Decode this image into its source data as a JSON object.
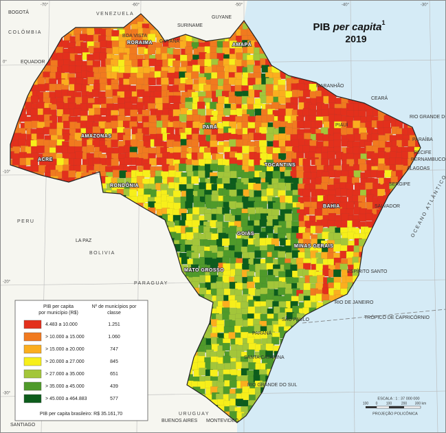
{
  "title": {
    "main": "PIB",
    "italic": "per capita",
    "sup": "1"
  },
  "year": "2019",
  "legend": {
    "header": [
      [
        "PIB per capita",
        "por município (R$)"
      ],
      [
        "Nº de municípios por",
        "classe"
      ]
    ],
    "classes": [
      {
        "range": "4.483 a 10.000",
        "count": "1.251",
        "color": "#e3301c"
      },
      {
        "range": "> 10.000 a 15.000",
        "count": "1.060",
        "color": "#f17a1f"
      },
      {
        "range": "> 15.000 a 20.000",
        "count": "747",
        "color": "#fbae1f"
      },
      {
        "range": "> 20.000 a 27.000",
        "count": "845",
        "color": "#f7ef1a"
      },
      {
        "range": "> 27.000 a 35.000",
        "count": "651",
        "color": "#a3c63a"
      },
      {
        "range": "> 35.000 a 45.000",
        "count": "439",
        "color": "#4f9a2a"
      },
      {
        "range": "> 45.000 a 464.883",
        "count": "577",
        "color": "#0d5d1c"
      }
    ],
    "footer": "PIB per capita brasileiro: R$ 35.161,70"
  },
  "scale": {
    "title": "ESCALA : 1 : 37 000 000",
    "ticks": [
      "100",
      "0",
      "100",
      "200",
      "300 km"
    ],
    "projection": "PROJEÇÃO POLICÔNICA"
  },
  "graticule": {
    "top": [
      "-70°",
      "-60°",
      "-50°",
      "-40°",
      "-30°"
    ],
    "left": [
      "0°",
      "-10°",
      "-20°",
      "-30°"
    ]
  },
  "labels": [
    "BOGOTÁ",
    "VENEZUELA",
    "COLÔMBIA",
    "SURINAME",
    "GUYANE",
    "GUYANA",
    "EQUADOR",
    "RORAIMA",
    "AMAPÁ",
    "AMAZONAS",
    "PARÁ",
    "MARANHÃO",
    "CEARÁ",
    "RIO GRANDE DO NORTE",
    "PARAÍBA",
    "PERNAMBUCO",
    "ALAGOAS",
    "SERGIPE",
    "BAHIA",
    "PIAUÍ",
    "TOCANTINS",
    "ACRE",
    "RONDÔNIA",
    "MATO GROSSO",
    "GOIÁS",
    "MINAS GERAIS",
    "ESPÍRITO SANTO",
    "RIO DE JANEIRO",
    "SÃO PAULO",
    "PARANÁ",
    "SANTA CATARINA",
    "RIO GRANDE DO SUL",
    "PERU",
    "BOLIVIA",
    "PARAGUAY",
    "URUGUAY",
    "OCEANO ATLÂNTICO",
    "TRÓPICO DE CAPRICÓRNIO",
    "BOA VISTA",
    "LA PAZ",
    "SALVADOR",
    "RECIFE",
    "BUENOS AIRES",
    "MONTEVIDEO",
    "SANTIAGO"
  ]
}
